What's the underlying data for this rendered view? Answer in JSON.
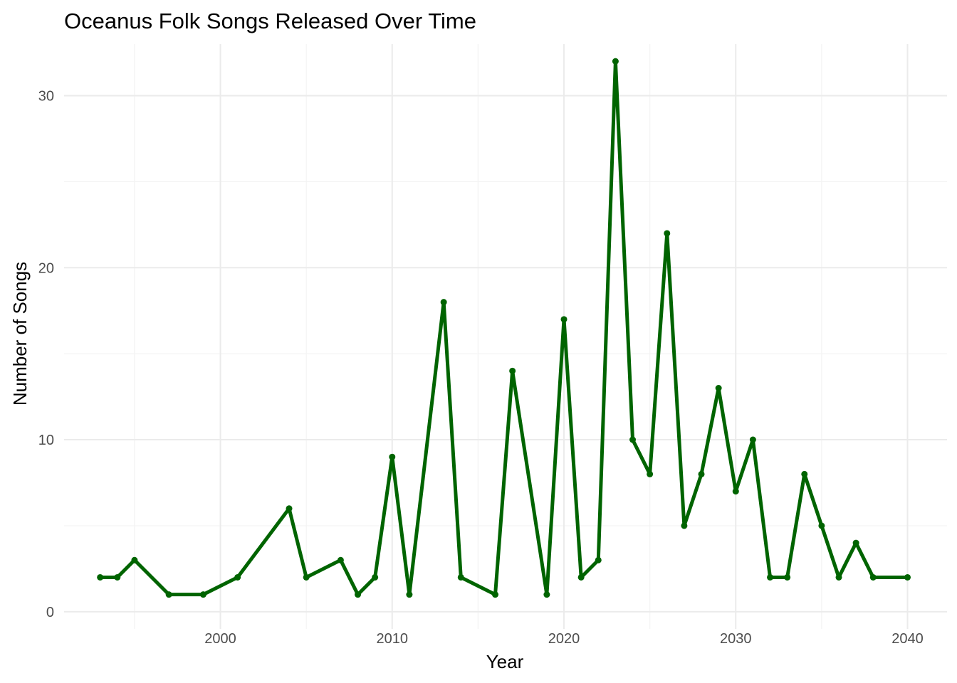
{
  "chart_data": {
    "type": "line",
    "title": "Oceanus Folk Songs Released Over Time",
    "xlabel": "Year",
    "ylabel": "Number of Songs",
    "xlim": [
      1990.9,
      2042.3
    ],
    "ylim": [
      -1.0,
      33.0
    ],
    "x_ticks": [
      2000,
      2010,
      2020,
      2030,
      2040
    ],
    "x_tick_labels": [
      "2000",
      "2010",
      "2020",
      "2030",
      "2040"
    ],
    "y_ticks": [
      0,
      10,
      20,
      30
    ],
    "y_tick_labels": [
      "0",
      "10",
      "20",
      "30"
    ],
    "grid": true,
    "line_color": "#006400",
    "series": [
      {
        "x": [
          1993,
          1994,
          1995,
          1997,
          1999,
          2001,
          2004,
          2005,
          2007,
          2008,
          2009,
          2010,
          2011,
          2013,
          2014,
          2016,
          2017,
          2019,
          2020,
          2021,
          2022,
          2023,
          2024,
          2025,
          2026,
          2027,
          2028,
          2029,
          2030,
          2031,
          2032,
          2033,
          2034,
          2035,
          2036,
          2037,
          2038,
          2040
        ],
        "values": [
          2,
          2,
          3,
          1,
          1,
          2,
          6,
          2,
          3,
          1,
          2,
          9,
          1,
          18,
          2,
          1,
          14,
          1,
          17,
          2,
          3,
          32,
          10,
          8,
          22,
          5,
          8,
          13,
          7,
          10,
          2,
          2,
          8,
          5,
          2,
          4,
          2,
          2
        ]
      }
    ]
  }
}
